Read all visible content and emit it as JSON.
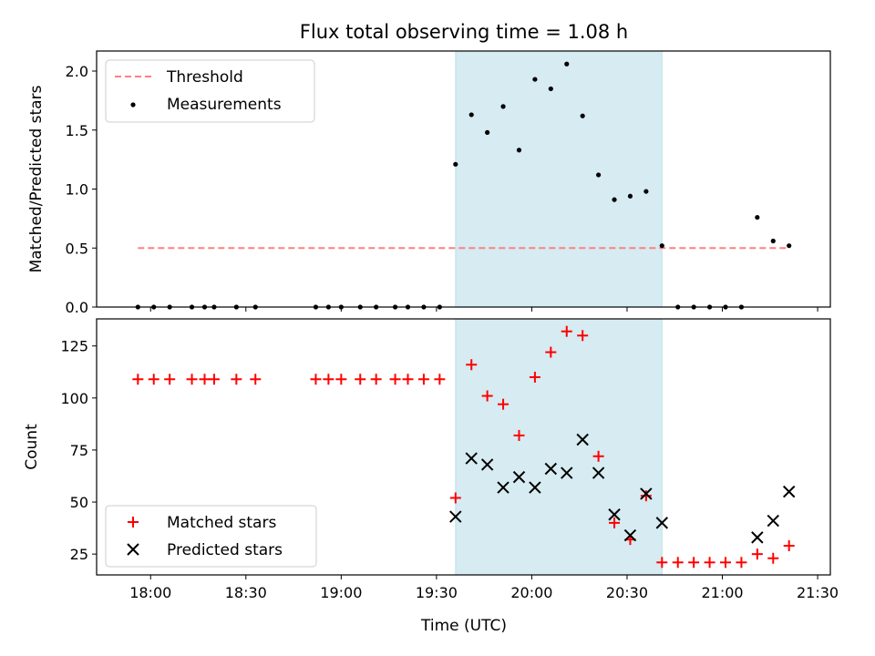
{
  "chart_data": [
    {
      "type": "scatter",
      "title": "Flux total observing time = 1.08 h",
      "xlabel": "",
      "ylabel": "Matched/Predicted stars",
      "ylim": [
        0,
        2.17
      ],
      "xlim": [
        "17:43",
        "21:34"
      ],
      "yticks": [
        "0.0",
        "0.5",
        "1.0",
        "1.5",
        "2.0"
      ],
      "ytick_values": [
        0,
        0.5,
        1.0,
        1.5,
        2.0
      ],
      "highlight_span": [
        "19:36",
        "20:41"
      ],
      "highlight_color": "#add8e6",
      "legend_position": "top-left",
      "threshold": {
        "name": "Threshold",
        "value": 0.5,
        "x_range": [
          "17:56",
          "21:21"
        ],
        "color": "#ff8080"
      },
      "series": [
        {
          "name": "Measurements",
          "marker": "dot",
          "color": "#000000",
          "x": [
            "17:56",
            "18:01",
            "18:06",
            "18:13",
            "18:17",
            "18:20",
            "18:27",
            "18:33",
            "18:52",
            "18:56",
            "19:00",
            "19:06",
            "19:11",
            "19:17",
            "19:21",
            "19:26",
            "19:31",
            "19:36",
            "19:41",
            "19:46",
            "19:51",
            "19:56",
            "20:01",
            "20:06",
            "20:11",
            "20:16",
            "20:21",
            "20:26",
            "20:31",
            "20:36",
            "20:41",
            "20:46",
            "20:51",
            "20:56",
            "21:01",
            "21:06",
            "21:11",
            "21:16",
            "21:21"
          ],
          "y": [
            0,
            0,
            0,
            0,
            0,
            0,
            0,
            0,
            0,
            0,
            0,
            0,
            0,
            0,
            0,
            0,
            0,
            1.21,
            1.63,
            1.48,
            1.7,
            1.33,
            1.93,
            1.85,
            2.06,
            1.62,
            1.12,
            0.91,
            0.94,
            0.98,
            0.52,
            0,
            0,
            0,
            0,
            0,
            0.76,
            0.56,
            0.52
          ]
        }
      ]
    },
    {
      "type": "scatter",
      "title": "",
      "xlabel": "Time (UTC)",
      "ylabel": "Count",
      "ylim": [
        15,
        138
      ],
      "xlim": [
        "17:43",
        "21:34"
      ],
      "xticks": [
        "18:00",
        "18:30",
        "19:00",
        "19:30",
        "20:00",
        "20:30",
        "21:00",
        "21:30"
      ],
      "yticks": [
        "25",
        "50",
        "75",
        "100",
        "125"
      ],
      "ytick_values": [
        25,
        50,
        75,
        100,
        125
      ],
      "highlight_span": [
        "19:36",
        "20:41"
      ],
      "highlight_color": "#add8e6",
      "legend_position": "bottom-left",
      "series": [
        {
          "name": "Matched stars",
          "marker": "plus",
          "color": "#ff0000",
          "x": [
            "17:56",
            "18:01",
            "18:06",
            "18:13",
            "18:17",
            "18:20",
            "18:27",
            "18:33",
            "18:52",
            "18:56",
            "19:00",
            "19:06",
            "19:11",
            "19:17",
            "19:21",
            "19:26",
            "19:31",
            "19:36",
            "19:41",
            "19:46",
            "19:51",
            "19:56",
            "20:01",
            "20:06",
            "20:11",
            "20:16",
            "20:21",
            "20:26",
            "20:31",
            "20:36",
            "20:41",
            "20:46",
            "20:51",
            "20:56",
            "21:01",
            "21:06",
            "21:11",
            "21:16",
            "21:21"
          ],
          "y": [
            109,
            109,
            109,
            109,
            109,
            109,
            109,
            109,
            109,
            109,
            109,
            109,
            109,
            109,
            109,
            109,
            109,
            52,
            116,
            101,
            97,
            82,
            110,
            122,
            132,
            130,
            72,
            40,
            32,
            53,
            21,
            21,
            21,
            21,
            21,
            21,
            25,
            23,
            29
          ]
        },
        {
          "name": "Predicted stars",
          "marker": "x",
          "color": "#000000",
          "x": [
            "19:36",
            "19:41",
            "19:46",
            "19:51",
            "19:56",
            "20:01",
            "20:06",
            "20:11",
            "20:16",
            "20:21",
            "20:26",
            "20:31",
            "20:36",
            "20:41",
            "21:11",
            "21:16",
            "21:21"
          ],
          "y": [
            43,
            71,
            68,
            57,
            62,
            57,
            66,
            64,
            80,
            64,
            44,
            34,
            54,
            40,
            33,
            41,
            55
          ]
        }
      ]
    }
  ]
}
